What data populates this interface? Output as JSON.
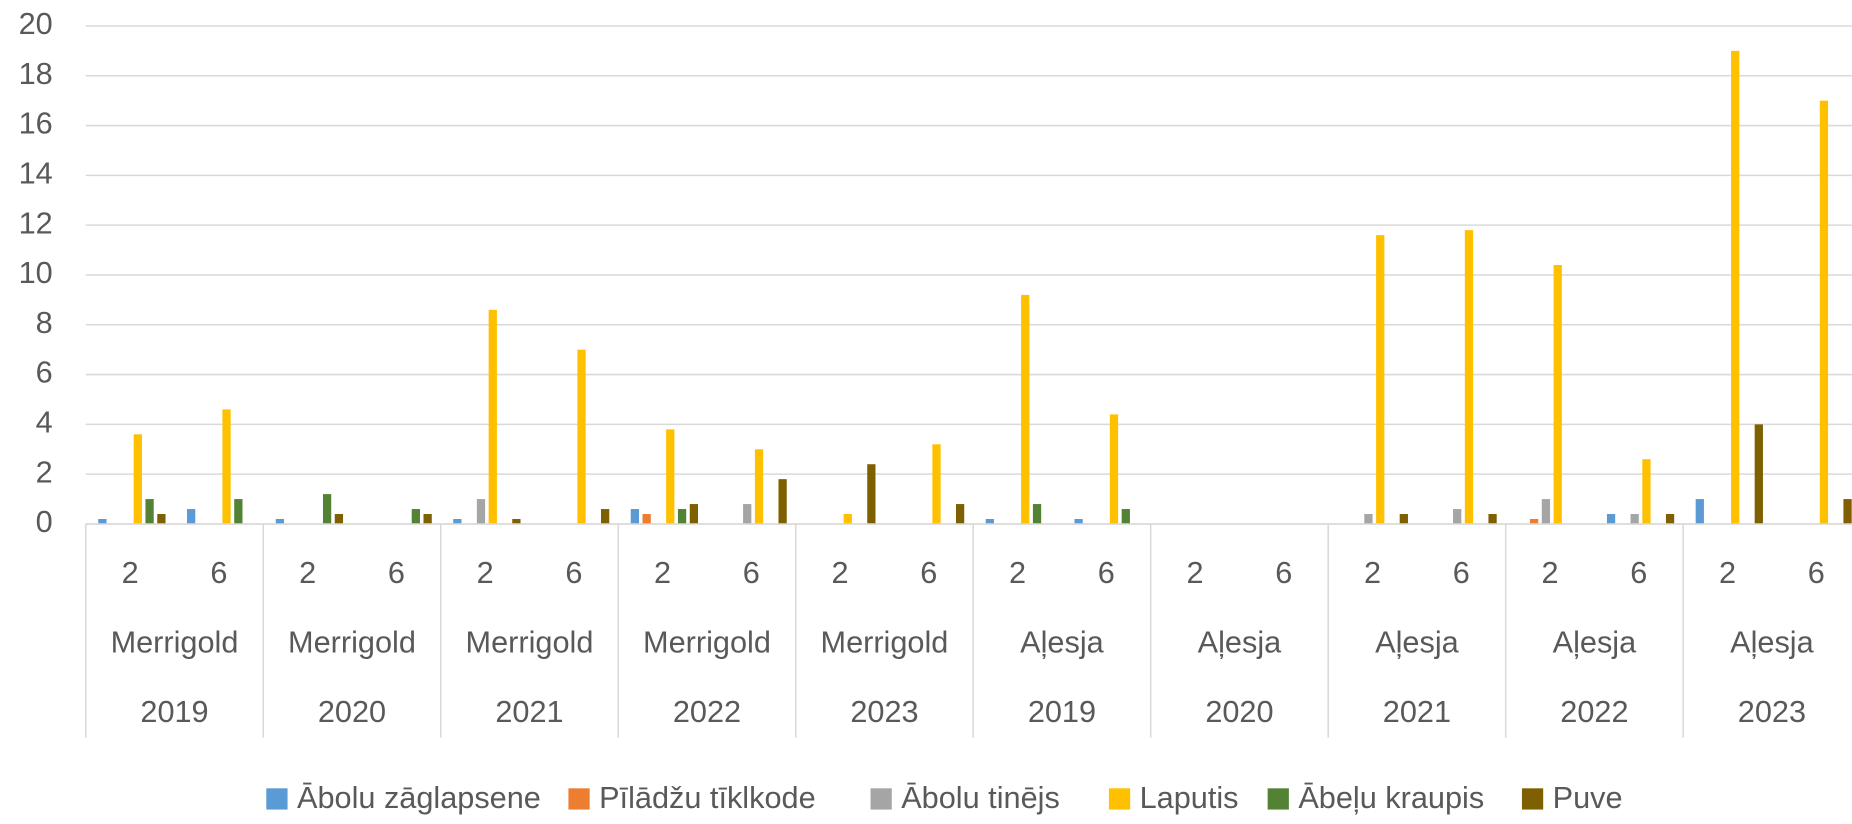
{
  "chart_data": {
    "type": "bar",
    "categories": [
      "2",
      "6",
      "2",
      "6",
      "2",
      "6",
      "2",
      "6",
      "2",
      "6",
      "2",
      "6",
      "2",
      "6",
      "2",
      "6",
      "2",
      "6",
      "2",
      "6"
    ],
    "varieties": [
      "Merrigold",
      "Merrigold",
      "Merrigold",
      "Merrigold",
      "Merrigold",
      "Aļesja",
      "Aļesja",
      "Aļesja",
      "Aļesja",
      "Aļesja"
    ],
    "years": [
      "2019",
      "2020",
      "2021",
      "2022",
      "2023",
      "2019",
      "2020",
      "2021",
      "2022",
      "2023"
    ],
    "series": [
      {
        "name": "Ābolu zāglapsene",
        "color": "#5b9bd5",
        "values": [
          0.2,
          0.6,
          0.2,
          0,
          0.2,
          0,
          0.6,
          0,
          0,
          0,
          0.2,
          0.2,
          0,
          0,
          0,
          0,
          0,
          0.4,
          1.0,
          0
        ]
      },
      {
        "name": "Pīlādžu tīklkode",
        "color": "#ed7d31",
        "values": [
          0,
          0,
          0,
          0,
          0,
          0,
          0.4,
          0,
          0,
          0,
          0,
          0,
          0,
          0,
          0,
          0,
          0.2,
          0,
          0,
          0
        ]
      },
      {
        "name": "Ābolu tinējs",
        "color": "#a5a5a5",
        "values": [
          0,
          0,
          0,
          0,
          1.0,
          0,
          0,
          0.8,
          0,
          0,
          0,
          0,
          0,
          0,
          0.4,
          0.6,
          1.0,
          0.4,
          0,
          0
        ]
      },
      {
        "name": "Laputis",
        "color": "#ffc000",
        "values": [
          3.6,
          4.6,
          0,
          0,
          8.6,
          7.0,
          3.8,
          3.0,
          0.4,
          3.2,
          9.2,
          4.4,
          0,
          0,
          11.6,
          11.8,
          10.4,
          2.6,
          19,
          17
        ]
      },
      {
        "name": "Ābeļu kraupis",
        "color": "#548235",
        "values": [
          1.0,
          1.0,
          1.2,
          0.6,
          0,
          0,
          0.6,
          0,
          0,
          0,
          0.8,
          0.6,
          0,
          0,
          0,
          0,
          0,
          0,
          0,
          0
        ]
      },
      {
        "name": "Puve",
        "color": "#7f6000",
        "values": [
          0.4,
          0,
          0.4,
          0.4,
          0.2,
          0.6,
          0.8,
          1.8,
          2.4,
          0.8,
          0,
          0,
          0,
          0,
          0.4,
          0.4,
          0,
          0.4,
          4.0,
          1.0
        ]
      }
    ],
    "ylim": [
      0,
      20
    ],
    "yticks": [
      0,
      2,
      4,
      6,
      8,
      10,
      12,
      14,
      16,
      18,
      20
    ],
    "grid": true,
    "legend": "bottom"
  }
}
